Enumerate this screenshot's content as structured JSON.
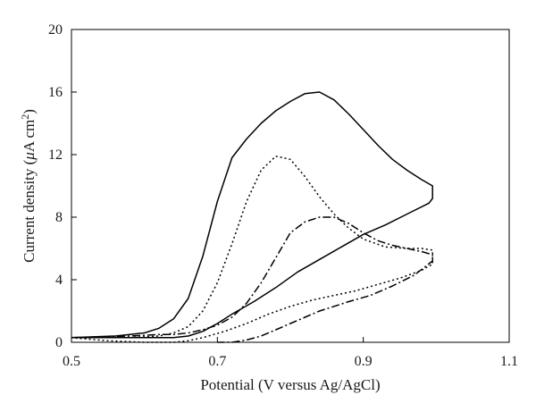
{
  "chart_data": {
    "type": "line",
    "title": "",
    "xlabel": "Potential (V versus Ag/AgCl)",
    "ylabel_prefix": "Current density (",
    "ylabel_mu": "μ",
    "ylabel_unit": "A cm",
    "ylabel_sup": "2",
    "ylabel_suffix": ")",
    "xlim": [
      0.5,
      1.1
    ],
    "ylim": [
      0,
      20
    ],
    "xticks": [
      0.5,
      0.7,
      0.9,
      1.1
    ],
    "xtick_labels": [
      "0.5",
      "0.7",
      "0.9",
      "1.1"
    ],
    "yticks": [
      0,
      4,
      8,
      12,
      16,
      20
    ],
    "ytick_labels": [
      "0",
      "4",
      "8",
      "12",
      "16",
      "20"
    ],
    "grid": false,
    "legend": "none",
    "series": [
      {
        "style": "solid",
        "x": [
          0.5,
          0.56,
          0.6,
          0.62,
          0.64,
          0.66,
          0.68,
          0.7,
          0.72,
          0.74,
          0.76,
          0.78,
          0.8,
          0.82,
          0.84,
          0.86,
          0.88,
          0.9,
          0.92,
          0.94,
          0.96,
          0.98,
          0.995,
          0.995,
          0.99,
          0.96,
          0.93,
          0.9,
          0.87,
          0.84,
          0.81,
          0.78,
          0.75,
          0.72,
          0.7,
          0.68,
          0.66,
          0.64,
          0.6,
          0.55,
          0.5
        ],
        "y": [
          0.3,
          0.4,
          0.6,
          0.9,
          1.5,
          2.8,
          5.5,
          9.0,
          11.8,
          13.0,
          14.0,
          14.8,
          15.4,
          15.9,
          16.0,
          15.5,
          14.6,
          13.6,
          12.6,
          11.7,
          11.0,
          10.4,
          10.0,
          9.2,
          8.9,
          8.2,
          7.5,
          6.9,
          6.1,
          5.3,
          4.5,
          3.5,
          2.6,
          1.8,
          1.2,
          0.7,
          0.4,
          0.3,
          0.3,
          0.3,
          0.3
        ]
      },
      {
        "style": "dotted",
        "x": [
          0.5,
          0.58,
          0.62,
          0.64,
          0.66,
          0.68,
          0.7,
          0.72,
          0.74,
          0.76,
          0.78,
          0.8,
          0.82,
          0.84,
          0.86,
          0.88,
          0.9,
          0.93,
          0.96,
          0.98,
          0.995,
          0.995,
          0.98,
          0.95,
          0.92,
          0.89,
          0.86,
          0.83,
          0.8,
          0.77,
          0.74,
          0.71,
          0.68,
          0.66,
          0.64,
          0.6,
          0.55,
          0.5
        ],
        "y": [
          0.3,
          0.3,
          0.4,
          0.6,
          1.0,
          2.0,
          3.8,
          6.3,
          9.0,
          11.0,
          11.9,
          11.7,
          10.6,
          9.3,
          8.2,
          7.3,
          6.6,
          6.1,
          6.0,
          6.0,
          5.9,
          5.0,
          4.6,
          4.1,
          3.7,
          3.3,
          3.0,
          2.7,
          2.3,
          1.8,
          1.2,
          0.7,
          0.3,
          0.1,
          0.0,
          0.0,
          0.1,
          0.3
        ]
      },
      {
        "style": "dashdot",
        "x": [
          0.5,
          0.58,
          0.62,
          0.64,
          0.66,
          0.68,
          0.7,
          0.72,
          0.74,
          0.76,
          0.78,
          0.8,
          0.82,
          0.84,
          0.86,
          0.88,
          0.9,
          0.92,
          0.94,
          0.96,
          0.98,
          0.995,
          0.995,
          0.97,
          0.94,
          0.91,
          0.88,
          0.86,
          0.84,
          0.82,
          0.8,
          0.78,
          0.76,
          0.74,
          0.72,
          0.7
        ],
        "y": [
          0.3,
          0.4,
          0.5,
          0.5,
          0.6,
          0.8,
          1.1,
          1.6,
          2.5,
          3.8,
          5.4,
          7.0,
          7.7,
          8.0,
          8.0,
          7.6,
          7.0,
          6.5,
          6.2,
          6.0,
          5.8,
          5.6,
          5.2,
          4.3,
          3.6,
          3.0,
          2.6,
          2.3,
          2.0,
          1.6,
          1.2,
          0.8,
          0.4,
          0.15,
          0.0,
          0.0
        ]
      }
    ]
  }
}
